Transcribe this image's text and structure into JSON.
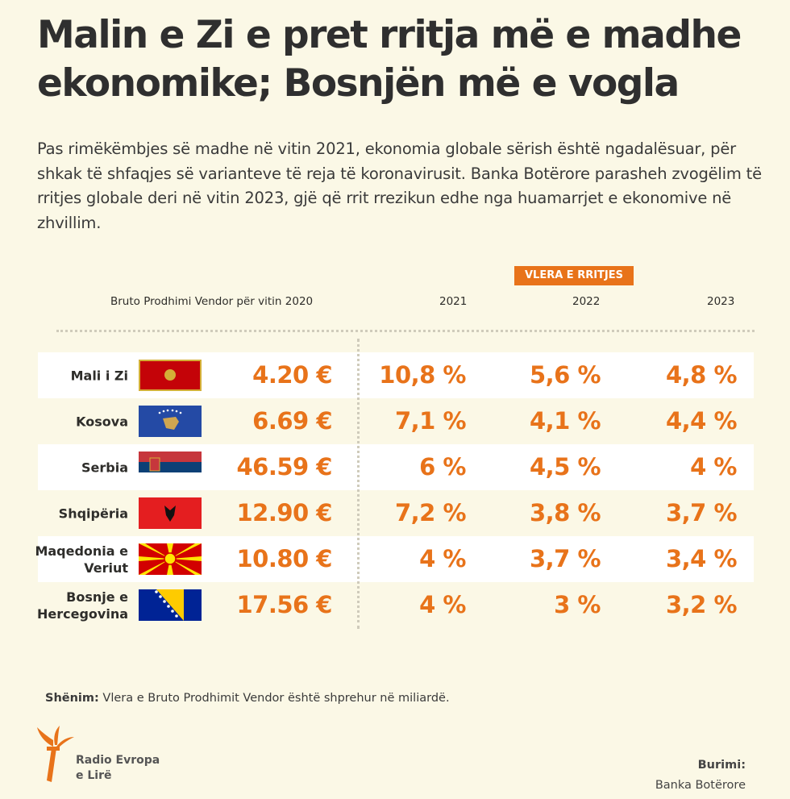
{
  "title": "Malin e Zi e pret rritja më e madhe ekonomike; Bosnjën më e vogla",
  "subtitle": "Pas rimëkëmbjes së madhe në vitin 2021, ekonomia globale sërish është ngadalësuar, për shkak të shfaqjes së varianteve të reja të koronavirusit. Banka Botërore parasheh zvogëlim të rritjes globale deri në vitin 2023, gjë që rrit rrezikun edhe nga huamarrjet e ekonomive në zhvillim.",
  "colors": {
    "accent": "#e8731a",
    "background": "#fbf8e6"
  },
  "chart_data": {
    "type": "table",
    "group_label": "VLERA E RRITJES",
    "columns": [
      "Bruto Prodhimi Vendor për vitin 2020",
      "2021",
      "2022",
      "2023"
    ],
    "rows": [
      {
        "country": "Mali i Zi",
        "flag": "montenegro-flag",
        "gdp": "4.20 €",
        "v2021": "10,8 %",
        "v2022": "5,6 %",
        "v2023": "4,8 %"
      },
      {
        "country": "Kosova",
        "flag": "kosovo-flag",
        "gdp": "6.69 €",
        "v2021": "7,1 %",
        "v2022": "4,1 %",
        "v2023": "4,4 %"
      },
      {
        "country": "Serbia",
        "flag": "serbia-flag",
        "gdp": "46.59 €",
        "v2021": "6 %",
        "v2022": "4,5 %",
        "v2023": "4 %"
      },
      {
        "country": "Shqipëria",
        "flag": "albania-flag",
        "gdp": "12.90 €",
        "v2021": "7,2 %",
        "v2022": "3,8 %",
        "v2023": "3,7 %"
      },
      {
        "country": "Maqedonia e Veriut",
        "flag": "north-macedonia-flag",
        "gdp": "10.80 €",
        "v2021": "4 %",
        "v2022": "3,7 %",
        "v2023": "3,4 %"
      },
      {
        "country": "Bosnje e Hercegovina",
        "flag": "bosnia-flag",
        "gdp": "17.56 €",
        "v2021": "4 %",
        "v2022": "3 %",
        "v2023": "3,2 %"
      }
    ]
  },
  "note": {
    "label": "Shënim:",
    "text": " Vlera e Bruto Prodhimit Vendor është shprehur në miliardë."
  },
  "logo": {
    "line1": "Radio Evropa",
    "line2": "e Lirë"
  },
  "source": {
    "label": "Burimi:",
    "value": "Banka Botërore"
  }
}
